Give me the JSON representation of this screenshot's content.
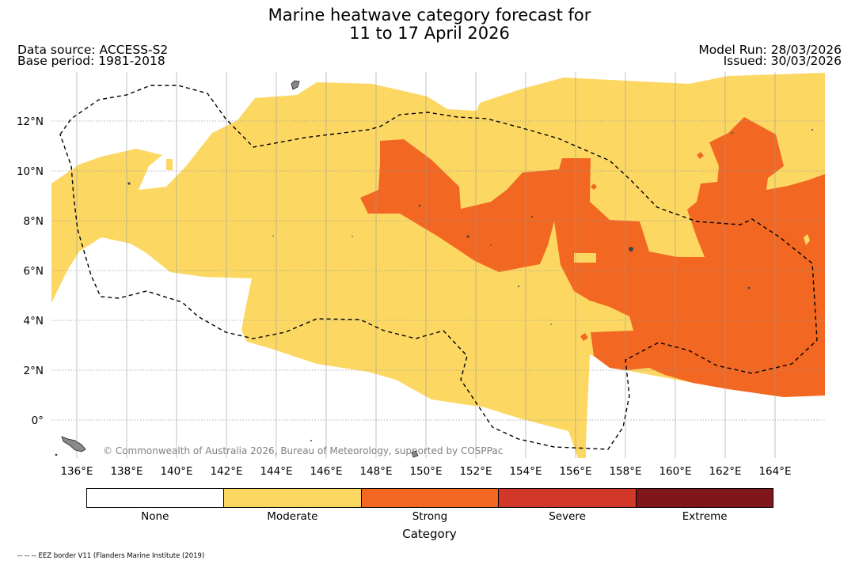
{
  "header": {
    "title_line1": "Marine heatwave category forecast for",
    "title_line2": "11 to 17 April 2026",
    "data_source": "Data source: ACCESS-S2",
    "base_period": "Base period: 1981-2018",
    "model_run": "Model Run: 28/03/2026",
    "issued": "Issued: 30/03/2026"
  },
  "map": {
    "x_ticks": [
      "136°E",
      "138°E",
      "140°E",
      "142°E",
      "144°E",
      "146°E",
      "148°E",
      "150°E",
      "152°E",
      "154°E",
      "156°E",
      "158°E",
      "160°E",
      "162°E",
      "164°E"
    ],
    "y_ticks": [
      "12°N",
      "10°N",
      "8°N",
      "6°N",
      "4°N",
      "2°N",
      "0°"
    ],
    "credit": "© Commonwealth of Australia 2026, Bureau of Meteorology, supported by COSPPac",
    "colors": {
      "moderate": "#fcd863",
      "strong": "#f26721",
      "land": "#888888",
      "grid": "#9a9a9a"
    }
  },
  "legend": {
    "title": "Category",
    "items": [
      {
        "label": "None",
        "color": "#ffffff"
      },
      {
        "label": "Moderate",
        "color": "#fcd863"
      },
      {
        "label": "Strong",
        "color": "#f26721"
      },
      {
        "label": "Severe",
        "color": "#d1382a"
      },
      {
        "label": "Extreme",
        "color": "#7f1619"
      }
    ]
  },
  "footer": {
    "eez_note": "-- -- -- EEZ border V11 (Flanders Marine Institute (2019)"
  }
}
